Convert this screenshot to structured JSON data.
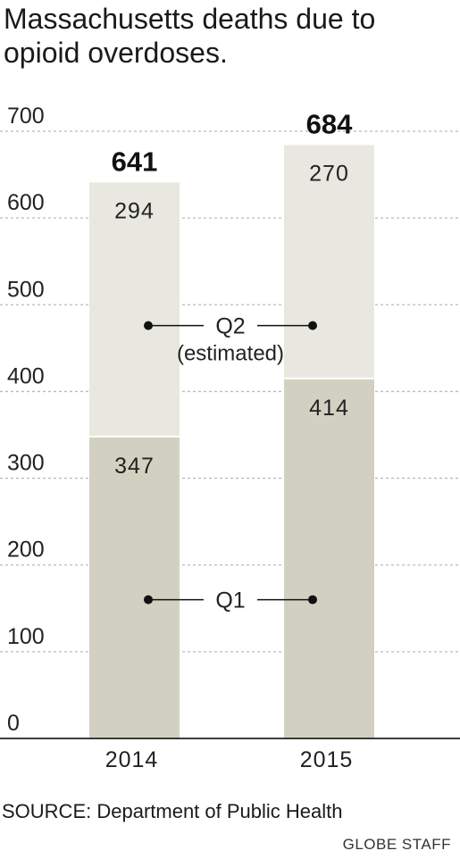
{
  "title": "Massachusetts deaths due to opioid overdoses.",
  "source": "SOURCE: Department of Public Health",
  "credit": "GLOBE STAFF",
  "colors": {
    "q1": "#d2d1c1",
    "q2": "#e8e8e0",
    "grid": "#bbbbbb",
    "axis": "#222222",
    "text": "#222222"
  },
  "chart_data": {
    "type": "bar",
    "stacked": true,
    "categories": [
      "2014",
      "2015"
    ],
    "series": [
      {
        "name": "Q1",
        "values": [
          347,
          414
        ]
      },
      {
        "name": "Q2",
        "annotation": "(estimated)",
        "values": [
          294,
          270
        ]
      }
    ],
    "totals": [
      641,
      684
    ],
    "yticks": [
      0,
      100,
      200,
      300,
      400,
      500,
      600,
      700
    ],
    "ylim": [
      0,
      700
    ],
    "grid": true,
    "xlabel": "",
    "ylabel": ""
  }
}
